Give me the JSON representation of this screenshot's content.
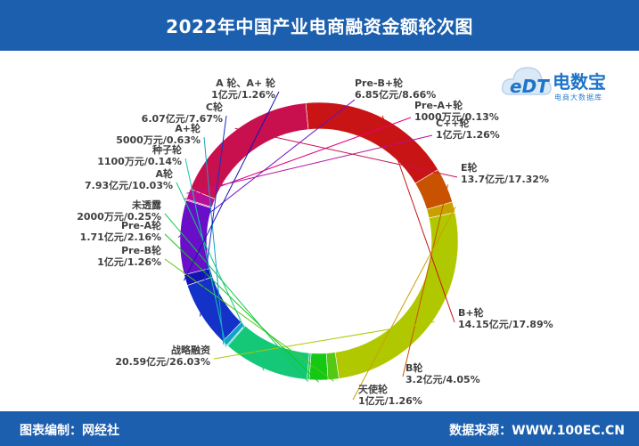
{
  "header": {
    "title": "2022年中国产业电商融资金额轮次图"
  },
  "footer": {
    "left": "图表编制：网经社",
    "right": "数据来源：WWW.100EC.CN"
  },
  "logo": {
    "cn": "电数宝",
    "sub": "电商大数据库",
    "mark": "eDT"
  },
  "chart_data": {
    "type": "pie",
    "donut": true,
    "slices": [
      {
        "name": "Pre-B+轮",
        "line1": "Pre-B+轮",
        "line2": "6.85亿元/8.66%",
        "value": 8.66,
        "color": "#6a0fc8"
      },
      {
        "name": "Pre-A+轮",
        "line1": "Pre-A+轮",
        "line2": "1000万元/0.13%",
        "value": 0.13,
        "color": "#e6007a"
      },
      {
        "name": "C++轮",
        "line1": "C++轮",
        "line2": "1亿元/1.26%",
        "value": 1.26,
        "color": "#b5109a"
      },
      {
        "name": "E轮",
        "line1": "E轮",
        "line2": "13.7亿元/17.32%",
        "value": 17.32,
        "color": "#c8104e"
      },
      {
        "name": "B+轮",
        "line1": "B+轮",
        "line2": "14.15亿元/17.89%",
        "value": 17.89,
        "color": "#c81414"
      },
      {
        "name": "B轮",
        "line1": "B轮",
        "line2": "3.2亿元/4.05%",
        "value": 4.05,
        "color": "#c85200"
      },
      {
        "name": "天使轮",
        "line1": "天使轮",
        "line2": "1亿元/1.26%",
        "value": 1.26,
        "color": "#c8a000"
      },
      {
        "name": "战略融资",
        "line1": "战略融资",
        "line2": "20.59亿元/26.03%",
        "value": 26.03,
        "color": "#b0c800"
      },
      {
        "name": "Pre-B轮",
        "line1": "Pre-B轮",
        "line2": "1亿元/1.26%",
        "value": 1.26,
        "color": "#54c814"
      },
      {
        "name": "Pre-A轮",
        "line1": "Pre-A轮",
        "line2": "1.71亿元/2.16%",
        "value": 2.16,
        "color": "#14c814"
      },
      {
        "name": "未透露",
        "line1": "未透露",
        "line2": "2000万元/0.25%",
        "value": 0.25,
        "color": "#14c850"
      },
      {
        "name": "A轮",
        "line1": "A轮",
        "line2": "7.93亿元/10.03%",
        "value": 10.03,
        "color": "#14c878"
      },
      {
        "name": "种子轮",
        "line1": "种子轮",
        "line2": "1100万元/0.14%",
        "value": 0.14,
        "color": "#14c8b4"
      },
      {
        "name": "A+轮",
        "line1": "A+轮",
        "line2": "5000万元/0.63%",
        "value": 0.63,
        "color": "#14a0c8"
      },
      {
        "name": "C轮",
        "line1": "C轮",
        "line2": "6.07亿元/7.67%",
        "value": 7.67,
        "color": "#1432c8"
      },
      {
        "name": "A轮、A+轮",
        "line1": "A 轮、A+ 轮",
        "line2": "1亿元/1.26%",
        "value": 1.26,
        "color": "#1414b4"
      }
    ]
  }
}
